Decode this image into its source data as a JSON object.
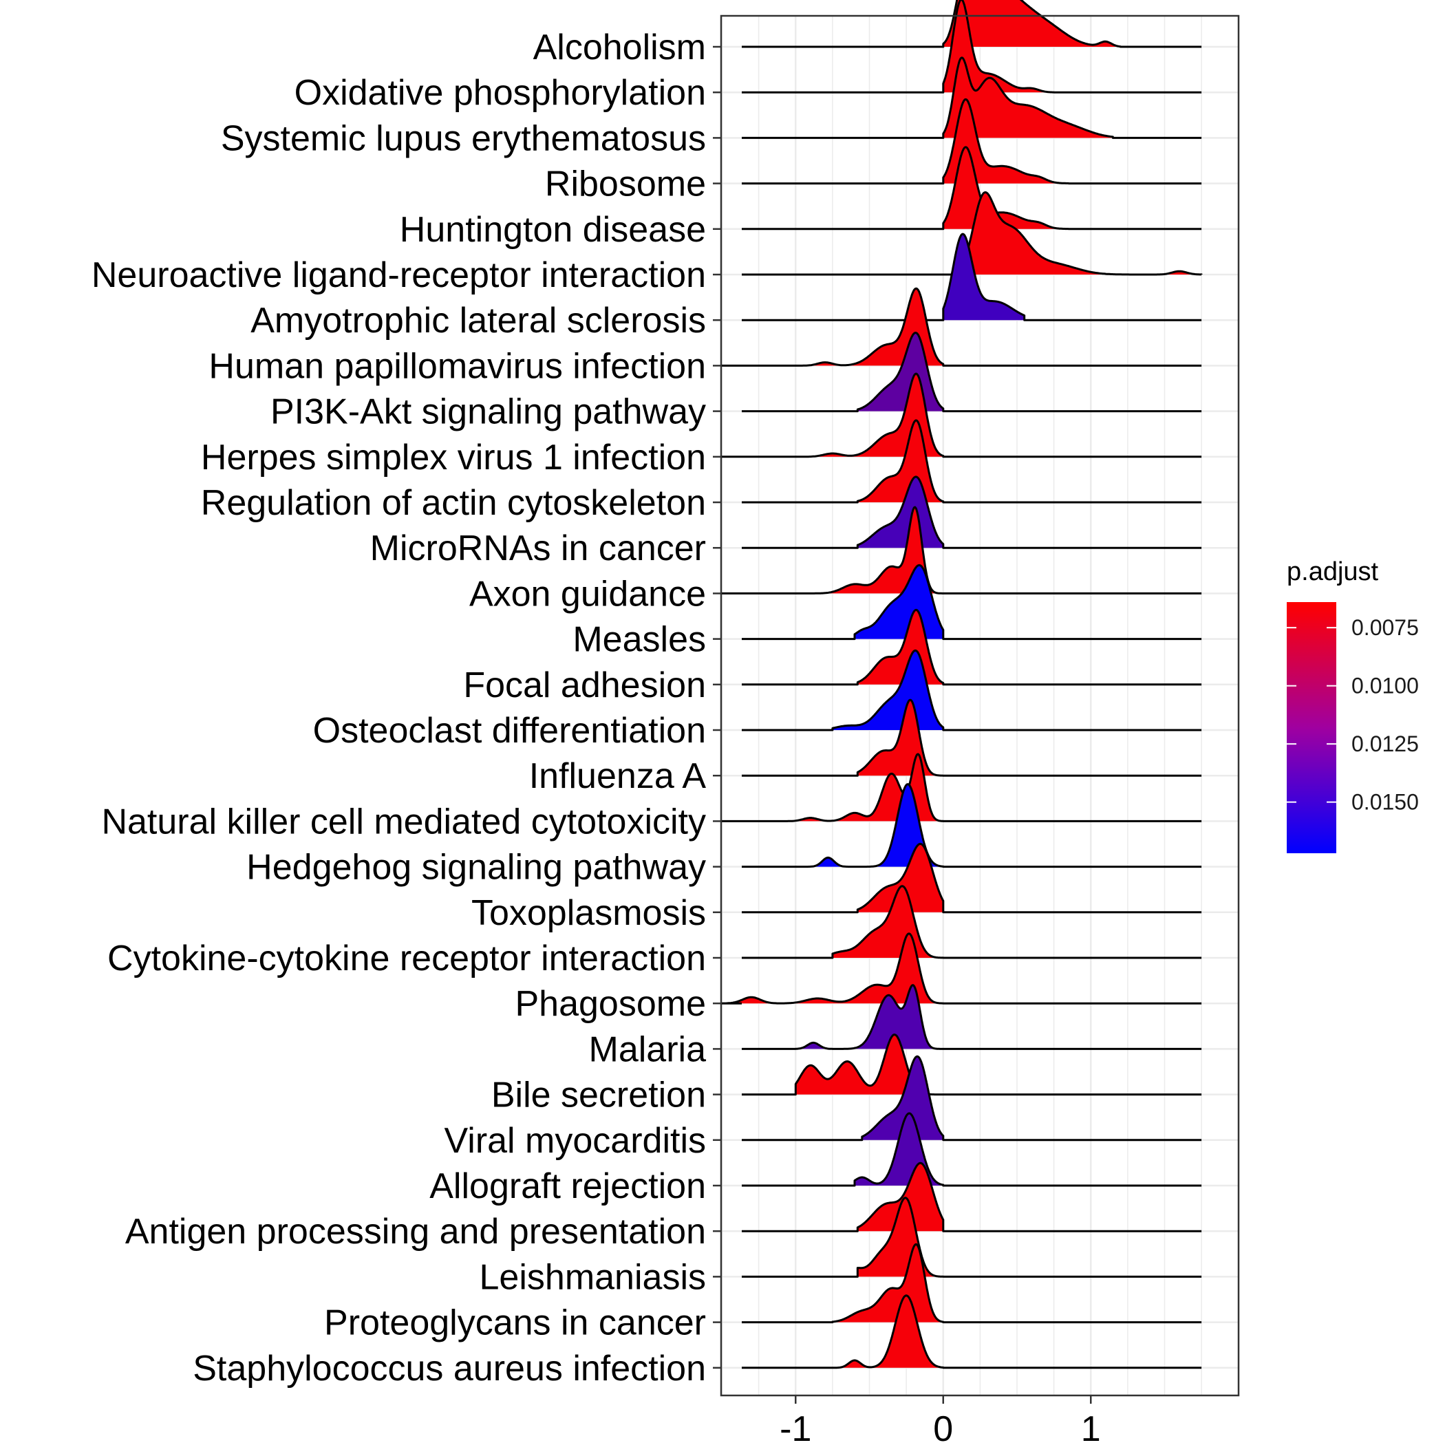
{
  "chart_data": {
    "type": "ridgeline",
    "xlim": [
      -1.5,
      1.95
    ],
    "x_ticks": [
      -1,
      0,
      1
    ],
    "x_tick_labels": [
      "-1",
      "0",
      "1"
    ],
    "grid": true,
    "legend": {
      "title": "p.adjust",
      "position": "right",
      "ticks": [
        0.0075,
        0.01,
        0.0125,
        0.015
      ],
      "tick_labels": [
        "0.0075",
        "0.0100",
        "0.0125",
        "0.0150"
      ],
      "range": [
        0.0064,
        0.0172
      ],
      "low_color": "#ff0000",
      "high_color": "#0000ff"
    },
    "series": [
      {
        "name": "Alcoholism",
        "p_adjust": 0.0068,
        "min": 0.0,
        "max": 1.2,
        "bumps": [
          [
            0.13,
            0.05,
            1.1
          ],
          [
            0.28,
            0.1,
            1.45
          ],
          [
            0.45,
            0.14,
            1.0
          ],
          [
            0.7,
            0.14,
            0.45
          ],
          [
            1.1,
            0.04,
            0.12
          ]
        ]
      },
      {
        "name": "Oxidative phosphorylation",
        "p_adjust": 0.0068,
        "min": 0.0,
        "max": 0.75,
        "bumps": [
          [
            0.12,
            0.055,
            2.1
          ],
          [
            0.3,
            0.12,
            0.45
          ],
          [
            0.6,
            0.05,
            0.08
          ]
        ]
      },
      {
        "name": "Systemic lupus erythematosus",
        "p_adjust": 0.0068,
        "min": 0.0,
        "max": 1.15,
        "bumps": [
          [
            0.12,
            0.05,
            1.75
          ],
          [
            0.3,
            0.09,
            1.25
          ],
          [
            0.55,
            0.15,
            0.75
          ],
          [
            0.85,
            0.14,
            0.25
          ]
        ]
      },
      {
        "name": "Ribosome",
        "p_adjust": 0.0068,
        "min": 0.0,
        "max": 0.85,
        "bumps": [
          [
            0.15,
            0.065,
            1.95
          ],
          [
            0.4,
            0.14,
            0.42
          ],
          [
            0.65,
            0.05,
            0.08
          ]
        ]
      },
      {
        "name": "Huntington disease",
        "p_adjust": 0.0068,
        "min": 0.0,
        "max": 0.85,
        "bumps": [
          [
            0.15,
            0.065,
            1.9
          ],
          [
            0.4,
            0.14,
            0.4
          ],
          [
            0.65,
            0.05,
            0.08
          ]
        ]
      },
      {
        "name": "Neuroactive ligand-receptor interaction",
        "p_adjust": 0.0068,
        "min": 0.15,
        "max": 1.75,
        "bumps": [
          [
            0.27,
            0.07,
            1.6
          ],
          [
            0.45,
            0.12,
            1.1
          ],
          [
            0.75,
            0.15,
            0.25
          ],
          [
            1.6,
            0.05,
            0.08
          ]
        ]
      },
      {
        "name": "Amyotrophic lateral sclerosis",
        "p_adjust": 0.0145,
        "min": 0.0,
        "max": 0.55,
        "bumps": [
          [
            0.13,
            0.065,
            2.0
          ],
          [
            0.35,
            0.12,
            0.45
          ]
        ]
      },
      {
        "name": "Human papillomavirus infection",
        "p_adjust": 0.0068,
        "min": -1.5,
        "max": 0.0,
        "bumps": [
          [
            -0.18,
            0.065,
            1.8
          ],
          [
            -0.38,
            0.1,
            0.5
          ],
          [
            -0.8,
            0.05,
            0.08
          ]
        ]
      },
      {
        "name": "PI3K-Akt signaling pathway",
        "p_adjust": 0.0132,
        "min": -0.58,
        "max": 0.0,
        "bumps": [
          [
            -0.18,
            0.07,
            1.75
          ],
          [
            -0.35,
            0.1,
            0.6
          ]
        ]
      },
      {
        "name": "Herpes simplex virus 1 infection",
        "p_adjust": 0.0068,
        "min": -1.5,
        "max": 0.0,
        "bumps": [
          [
            -0.18,
            0.06,
            1.9
          ],
          [
            -0.36,
            0.1,
            0.55
          ],
          [
            -0.75,
            0.06,
            0.08
          ]
        ]
      },
      {
        "name": "Regulation of actin cytoskeleton",
        "p_adjust": 0.0068,
        "min": -0.58,
        "max": 0.0,
        "bumps": [
          [
            -0.18,
            0.06,
            1.9
          ],
          [
            -0.36,
            0.09,
            0.6
          ]
        ]
      },
      {
        "name": "MicroRNAs in cancer",
        "p_adjust": 0.0142,
        "min": -0.58,
        "max": 0.0,
        "bumps": [
          [
            -0.18,
            0.075,
            1.65
          ],
          [
            -0.38,
            0.1,
            0.5
          ]
        ]
      },
      {
        "name": "Axon guidance",
        "p_adjust": 0.0068,
        "min": -1.5,
        "max": 0.0,
        "bumps": [
          [
            -0.19,
            0.045,
            2.0
          ],
          [
            -0.35,
            0.08,
            0.65
          ],
          [
            -0.6,
            0.08,
            0.22
          ]
        ]
      },
      {
        "name": "Measles",
        "p_adjust": 0.017,
        "min": -0.6,
        "max": 0.0,
        "bumps": [
          [
            -0.15,
            0.075,
            1.6
          ],
          [
            -0.33,
            0.1,
            0.85
          ],
          [
            -0.55,
            0.05,
            0.15
          ]
        ]
      },
      {
        "name": "Focal adhesion",
        "p_adjust": 0.0068,
        "min": -0.58,
        "max": 0.0,
        "bumps": [
          [
            -0.18,
            0.065,
            1.75
          ],
          [
            -0.38,
            0.09,
            0.65
          ],
          [
            -0.75,
            0.05,
            0.08
          ]
        ]
      },
      {
        "name": "Osteoclast differentiation",
        "p_adjust": 0.017,
        "min": -0.75,
        "max": 0.0,
        "bumps": [
          [
            -0.18,
            0.07,
            1.75
          ],
          [
            -0.35,
            0.1,
            0.7
          ],
          [
            -0.65,
            0.08,
            0.1
          ]
        ]
      },
      {
        "name": "Influenza A",
        "p_adjust": 0.0068,
        "min": -0.58,
        "max": 0.0,
        "bumps": [
          [
            -0.22,
            0.055,
            1.75
          ],
          [
            -0.4,
            0.09,
            0.6
          ],
          [
            -0.78,
            0.05,
            0.08
          ]
        ]
      },
      {
        "name": "Natural killer cell mediated cytotoxicity",
        "p_adjust": 0.0068,
        "min": -1.5,
        "max": 0.0,
        "bumps": [
          [
            -0.17,
            0.045,
            1.6
          ],
          [
            -0.35,
            0.065,
            1.15
          ],
          [
            -0.6,
            0.06,
            0.2
          ],
          [
            -0.9,
            0.05,
            0.08
          ]
        ]
      },
      {
        "name": "Hedgehog signaling pathway",
        "p_adjust": 0.017,
        "min": -0.92,
        "max": 0.0,
        "bumps": [
          [
            -0.24,
            0.07,
            2.0
          ],
          [
            -0.78,
            0.04,
            0.22
          ]
        ]
      },
      {
        "name": "Toxoplasmosis",
        "p_adjust": 0.0068,
        "min": -0.58,
        "max": 0.0,
        "bumps": [
          [
            -0.15,
            0.08,
            1.6
          ],
          [
            -0.37,
            0.1,
            0.6
          ]
        ]
      },
      {
        "name": "Cytokine-cytokine receptor interaction",
        "p_adjust": 0.0068,
        "min": -0.75,
        "max": 0.0,
        "bumps": [
          [
            -0.27,
            0.07,
            1.6
          ],
          [
            -0.45,
            0.1,
            0.65
          ],
          [
            -0.7,
            0.07,
            0.12
          ]
        ]
      },
      {
        "name": "Phagosome",
        "p_adjust": 0.0068,
        "min": -1.5,
        "max": 0.0,
        "bumps": [
          [
            -0.23,
            0.06,
            1.65
          ],
          [
            -0.45,
            0.1,
            0.45
          ],
          [
            -0.85,
            0.08,
            0.12
          ],
          [
            -1.3,
            0.06,
            0.15
          ]
        ]
      },
      {
        "name": "Malaria",
        "p_adjust": 0.0138,
        "min": -1.0,
        "max": 0.0,
        "bumps": [
          [
            -0.2,
            0.045,
            1.4
          ],
          [
            -0.37,
            0.08,
            1.3
          ],
          [
            -0.88,
            0.04,
            0.15
          ]
        ]
      },
      {
        "name": "Bile secretion",
        "p_adjust": 0.0068,
        "min": -1.0,
        "max": 0.0,
        "bumps": [
          [
            -0.33,
            0.07,
            1.45
          ],
          [
            -0.65,
            0.08,
            0.8
          ],
          [
            -0.9,
            0.07,
            0.7
          ]
        ]
      },
      {
        "name": "Viral myocarditis",
        "p_adjust": 0.0138,
        "min": -0.55,
        "max": 0.0,
        "bumps": [
          [
            -0.17,
            0.07,
            1.9
          ],
          [
            -0.35,
            0.1,
            0.6
          ]
        ]
      },
      {
        "name": "Allograft rejection",
        "p_adjust": 0.0138,
        "min": -0.6,
        "max": 0.0,
        "bumps": [
          [
            -0.23,
            0.075,
            1.75
          ],
          [
            -0.55,
            0.05,
            0.2
          ]
        ]
      },
      {
        "name": "Antigen processing and presentation",
        "p_adjust": 0.0068,
        "min": -0.58,
        "max": 0.0,
        "bumps": [
          [
            -0.15,
            0.08,
            1.6
          ],
          [
            -0.38,
            0.1,
            0.65
          ]
        ]
      },
      {
        "name": "Leishmaniasis",
        "p_adjust": 0.0068,
        "min": -0.58,
        "max": 0.0,
        "bumps": [
          [
            -0.25,
            0.065,
            1.8
          ],
          [
            -0.4,
            0.08,
            0.6
          ],
          [
            -0.6,
            0.05,
            0.18
          ]
        ]
      },
      {
        "name": "Proteoglycans in cancer",
        "p_adjust": 0.0068,
        "min": -0.75,
        "max": 0.0,
        "bumps": [
          [
            -0.18,
            0.055,
            1.8
          ],
          [
            -0.35,
            0.08,
            0.8
          ],
          [
            -0.55,
            0.08,
            0.25
          ]
        ]
      },
      {
        "name": "Staphylococcus aureus infection",
        "p_adjust": 0.0068,
        "min": -0.75,
        "max": 0.0,
        "bumps": [
          [
            -0.25,
            0.075,
            1.75
          ],
          [
            -0.6,
            0.04,
            0.18
          ]
        ]
      }
    ]
  }
}
